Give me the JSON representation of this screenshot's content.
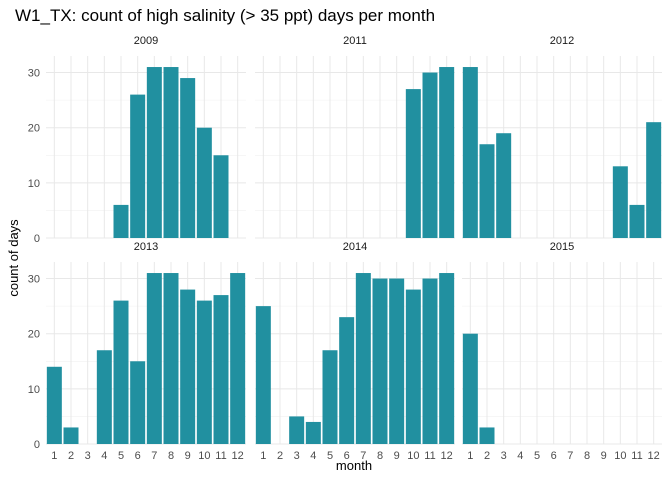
{
  "chart_data": {
    "type": "bar",
    "title": "W1_TX: count of high salinity (> 35 ppt) days per month",
    "xlabel": "month",
    "ylabel": "count of days",
    "x_ticks": [
      "1",
      "2",
      "3",
      "4",
      "5",
      "6",
      "7",
      "8",
      "9",
      "10",
      "11",
      "12"
    ],
    "y_ticks": [
      "0",
      "10",
      "20",
      "30"
    ],
    "ylim": [
      0,
      33
    ],
    "grid": true,
    "bar_color": "#2190A0",
    "facets": [
      {
        "label": "2009",
        "values": [
          0,
          0,
          0,
          0,
          6,
          26,
          31,
          31,
          29,
          20,
          15,
          0
        ]
      },
      {
        "label": "2011",
        "values": [
          0,
          0,
          0,
          0,
          0,
          0,
          0,
          0,
          0,
          27,
          30,
          31
        ]
      },
      {
        "label": "2012",
        "values": [
          31,
          17,
          19,
          0,
          0,
          0,
          0,
          0,
          0,
          13,
          6,
          21
        ]
      },
      {
        "label": "2013",
        "values": [
          14,
          3,
          0,
          17,
          26,
          15,
          31,
          31,
          28,
          26,
          27,
          31
        ]
      },
      {
        "label": "2014",
        "values": [
          25,
          0,
          5,
          4,
          17,
          23,
          31,
          30,
          30,
          28,
          30,
          31
        ]
      },
      {
        "label": "2015",
        "values": [
          20,
          3,
          0,
          0,
          0,
          0,
          0,
          0,
          0,
          0,
          0,
          0
        ]
      }
    ]
  }
}
